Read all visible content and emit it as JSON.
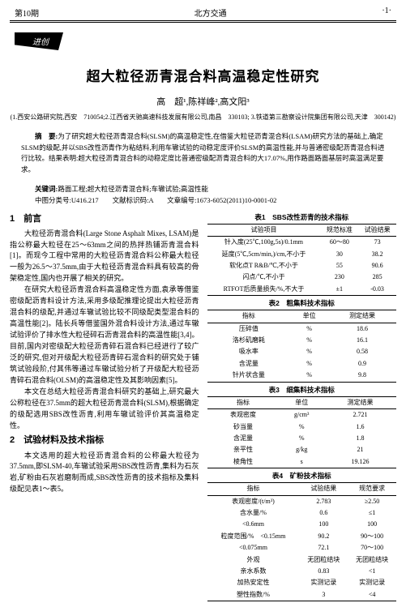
{
  "header": {
    "left": "第10期",
    "center": "北方交通",
    "right": "·1·"
  },
  "badge": "进创",
  "title": "超大粒径沥青混合料高温稳定性研究",
  "authors": "高　超¹,陈祥峰²,高文阳³",
  "affil": "(1.西安公路研究院,西安　710054;2.江西省天驰高速科技发展有限公司,南昌　330103;\n3.铁道第三勘察设计院集团有限公司,天津　300142)",
  "abstract_label": "摘　要:",
  "abstract": "为了研究超大粒径沥青混合料(SLSM)的高温稳定性,在借鉴大粒径沥青混合料(LSAM)研究方法的基础上,确定SLSM的级配,并以SBS改性沥青作为粘结料,利用车辙试验的动稳定度评价SLSM的高温性能,并与普通密级配沥青混合料进行比较。结果表明:超大粒径沥青混合料的动稳定度比普通密级配沥青混合料的大17.07%,用作路面路面基层时高温满足要求。",
  "kw_label": "关键词:",
  "kw": "路面工程;超大粒径沥青混合料;车辙试验;高温性能",
  "classline": "中图分类号:U416.217　　文献标识码:A　　文章编号:1673-6052(2011)10-0001-02",
  "sec1_h": "1　前言",
  "p1": "大粒径沥青混合料(Large Stone Asphalt Mixes, LSAM)是指公称最大粒径在25～63mm之间的热拌热铺沥青混合料[1]。而现今工程中常用的大粒径沥青混合料公称最大粒径一般为26.5～37.5mm,由于大粒径沥青混合料具有较高的骨架稳定性,国内也开展了相关的研究。",
  "p2": "在研究大粒径沥青混合料高温稳定性方面,袁承等借鉴密级配沥青料设计方法,采用多级配推理论提出大粒径沥青混合料的级配,并通过车辙试验比较不同级配类型混合料的高温性能[2]。陆长兵等借鉴国外混合料设计方法,通过车辙试验评价了排水性大粒径碎石沥青混合料的高温性能[3,4]。目前,国内对密级配大粒径沥青碎石混合料已经进行了较广泛的研究,但对开级配大粒径沥青碎石混合料的研究处于铺筑试验段阶,付其伟等通过车辙试验分析了开级配大粒径沥青碎石混合料(OLSM)的高温稳定性及其影响因素[5]。",
  "p3": "本文在总结大粒径沥青混合料研究的基础上,研究最大公称粒径在37.5mm的超大粒径沥青混合料(SLSM),根据确定的级配选用SBS改性沥青,利用车辙试验评价其高温稳定性。",
  "sec2_h": "2　试验材料及技术指标",
  "p4": "本文选用的超大粒径沥青混合料的公称最大粒径为37.5mm,即SLSM-40,车辙试验采用SBS改性沥青,集料为石灰岩,矿粉由石灰岩磨制而成,SBS改性沥青的技术指标及集料级配见表1～表5。",
  "t1_cap": "表1　SBS改性沥青的技术指标",
  "t1": {
    "head": [
      "试验项目",
      "规范标准",
      "试验结果"
    ],
    "rows": [
      [
        "针入度(25℃,100g,5s)/0.1mm",
        "60～80",
        "73"
      ],
      [
        "延度(5℃,5cm/min,)/cm,不小于",
        "30",
        "38.2"
      ],
      [
        "软化点T R&B/℃,不小于",
        "55",
        "90.6"
      ],
      [
        "闪点/℃,不小于",
        "230",
        "285"
      ],
      [
        "RTFOT后质量损失/%,不大于",
        "±1",
        "-0.03"
      ]
    ]
  },
  "t2_cap": "表2　粗集料技术指标",
  "t2": {
    "head": [
      "指标",
      "单位",
      "测定结果"
    ],
    "rows": [
      [
        "压碎值",
        "%",
        "18.6"
      ],
      [
        "洛杉矶磨耗",
        "%",
        "16.1"
      ],
      [
        "吸水率",
        "%",
        "0.58"
      ],
      [
        "含泥量",
        "%",
        "0.9"
      ],
      [
        "针片状含量",
        "%",
        "9.8"
      ]
    ]
  },
  "t3_cap": "表3　细集料技术指标",
  "t3": {
    "head": [
      "指标",
      "单位",
      "测定结果"
    ],
    "rows": [
      [
        "表观密度",
        "g/cm³",
        "2.721"
      ],
      [
        "砂当量",
        "%",
        "1.6"
      ],
      [
        "含泥量",
        "%",
        "1.8"
      ],
      [
        "亲平性",
        "g/kg",
        "21"
      ],
      [
        "棱角性",
        "s",
        "19.126"
      ]
    ]
  },
  "t4_cap": "表4　矿粉技术指标",
  "t4": {
    "head": [
      "指标",
      "试验结果",
      "规范要求"
    ],
    "rows": [
      [
        "表观密度/(t/m³)",
        "2.783",
        "≥2.50"
      ],
      [
        "含水量/%",
        "0.6",
        "≤1"
      ],
      [
        "<0.6mm",
        "100",
        "100"
      ],
      [
        "粒度范围/%　<0.15mm",
        "90.2",
        "90～100"
      ],
      [
        "<0.075mm",
        "72.1",
        "70～100"
      ],
      [
        "外观",
        "无团粒结块",
        "无团粒结块"
      ],
      [
        "亲水系数",
        "0.83",
        "<1"
      ],
      [
        "加热安定性",
        "实测记录",
        "实测记录"
      ],
      [
        "塑性指数/%",
        "3",
        "<4"
      ]
    ]
  }
}
